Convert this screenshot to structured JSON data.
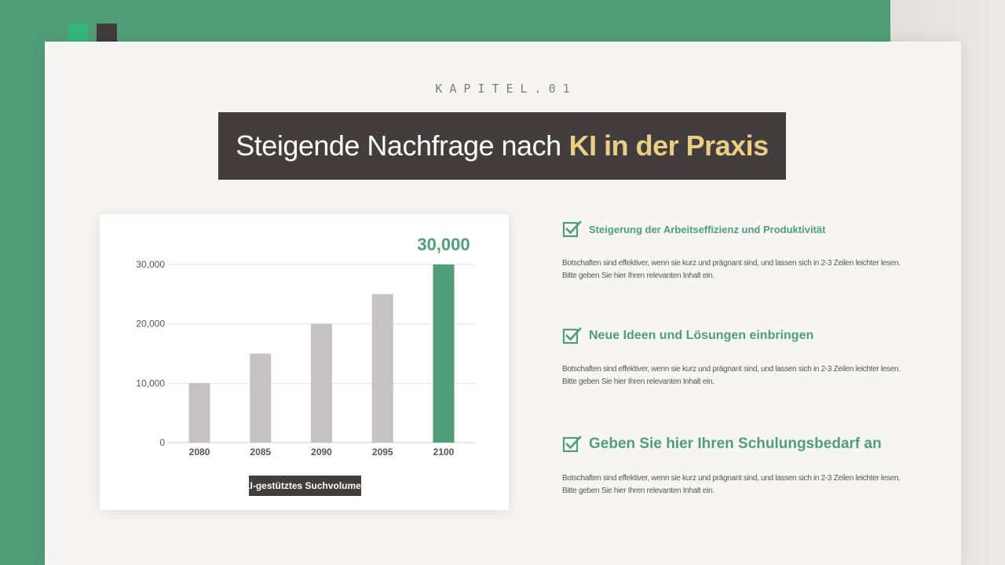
{
  "slide": {
    "chapter": "KAPITEL.01",
    "title_main": "Steigende Nachfrage nach",
    "title_highlight": "KI in der Praxis",
    "colors": {
      "green": "#4f9e78",
      "dark": "#433e3d",
      "highlight": "#e8cf84",
      "bar_gray": "#c4c2c3"
    }
  },
  "chart_data": {
    "type": "bar",
    "categories": [
      "2080",
      "2085",
      "2090",
      "2095",
      "2100"
    ],
    "values": [
      10000,
      15000,
      20000,
      25000,
      30000
    ],
    "highlight_index": 4,
    "highlight_label": "30,000",
    "y_ticks": [
      "0",
      "10,000",
      "20,000",
      "30,000"
    ],
    "ylim": [
      0,
      30000
    ],
    "xlabel": "KI-gestütztes Suchvolumen",
    "ylabel": "",
    "grid": true
  },
  "items": [
    {
      "heading": "Steigerung der Arbeitseffizienz und Produktivität",
      "line1": "Botschaften sind effektiver, wenn sie kurz und prägnant sind, und lassen sich in 2-3 Zeilen leichter lesen.",
      "line2": "Bitte geben Sie hier Ihren relevanten Inhalt ein.",
      "icon": "check-square-icon"
    },
    {
      "heading": "Neue Ideen und Lösungen einbringen",
      "line1": "Botschaften sind effektiver, wenn sie kurz und prägnant sind, und lassen sich in 2-3 Zeilen leichter lesen.",
      "line2": "Bitte geben Sie hier Ihren relevanten Inhalt ein.",
      "icon": "check-square-icon"
    },
    {
      "heading": "Geben Sie hier Ihren Schulungsbedarf an",
      "line1": "Botschaften sind effektiver, wenn sie kurz und prägnant sind, und lassen sich in 2-3 Zeilen leichter lesen.",
      "line2": "Bitte geben Sie hier Ihren relevanten Inhalt ein.",
      "icon": "check-square-icon"
    }
  ]
}
